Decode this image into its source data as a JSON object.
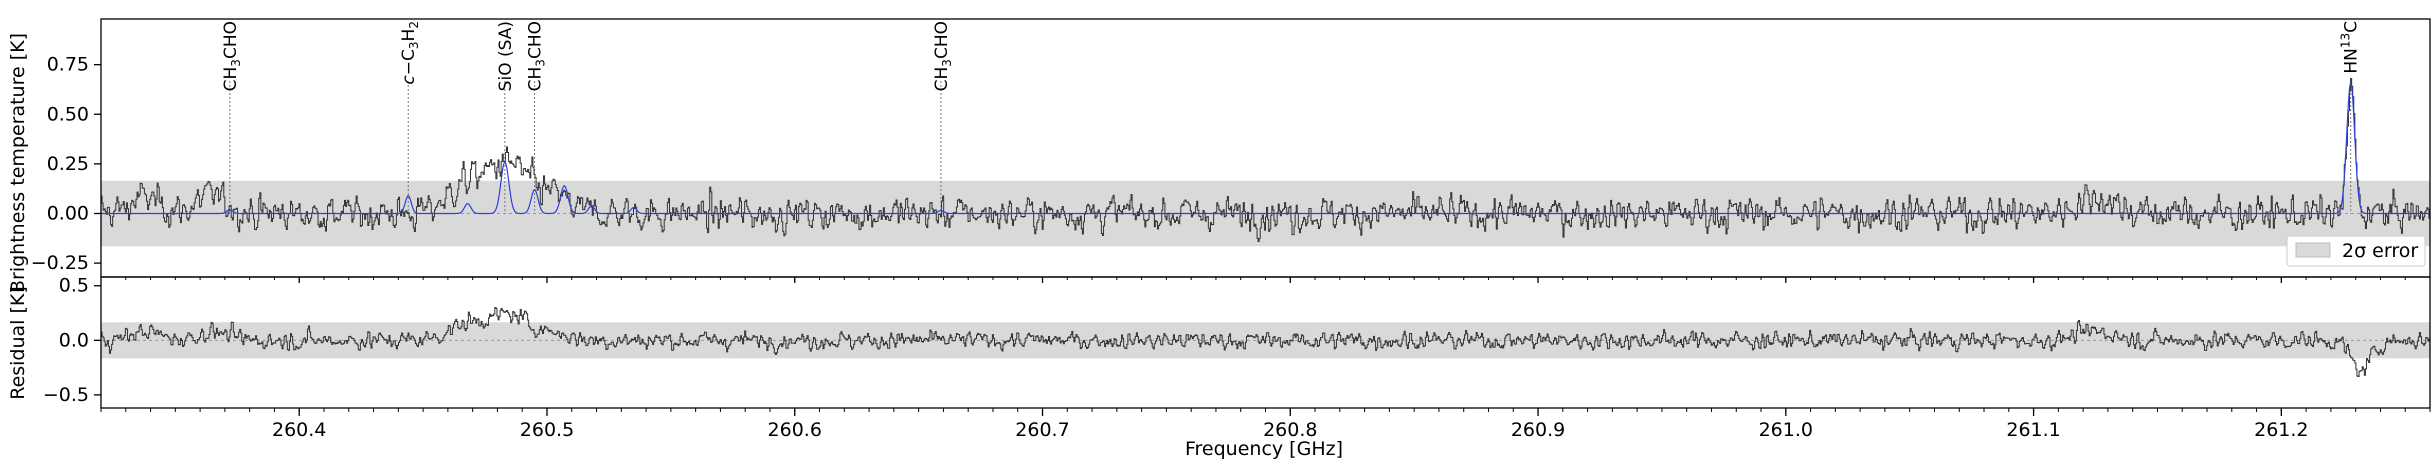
{
  "chart_data": [
    {
      "type": "line",
      "panel": "top",
      "ylabel": "Brightness temperature [K]",
      "xlim": [
        260.32,
        261.26
      ],
      "ylim": [
        -0.32,
        0.98
      ],
      "yticks": [
        -0.25,
        0.0,
        0.25,
        0.5,
        0.75
      ],
      "ytick_labels": [
        "−0.25",
        "0.00",
        "0.25",
        "0.50",
        "0.75"
      ],
      "error_band": 0.165,
      "legend": {
        "position": "lower-right",
        "label": "2σ error"
      },
      "line_markers": [
        {
          "freq": 260.372,
          "label": "CH3CHO",
          "sub": "3",
          "type": "formula"
        },
        {
          "freq": 260.444,
          "label": "c-C3H2",
          "type": "cc3h2"
        },
        {
          "freq": 260.483,
          "label": "SiO (SA)",
          "type": "plain"
        },
        {
          "freq": 260.495,
          "label": "CH3CHO",
          "sub": "3",
          "type": "formula"
        },
        {
          "freq": 260.659,
          "label": "CH3CHO",
          "sub": "3",
          "type": "formula"
        },
        {
          "freq": 261.228,
          "label": "HN13C",
          "type": "hn13c"
        }
      ],
      "model_components": [
        {
          "center": 260.372,
          "amp": 0.02,
          "width": 0.0012
        },
        {
          "center": 260.444,
          "amp": 0.09,
          "width": 0.0012
        },
        {
          "center": 260.483,
          "amp": 0.26,
          "width": 0.0016
        },
        {
          "center": 260.495,
          "amp": 0.12,
          "width": 0.0014
        },
        {
          "center": 260.507,
          "amp": 0.14,
          "width": 0.0015
        },
        {
          "center": 260.468,
          "amp": 0.05,
          "width": 0.0013
        },
        {
          "center": 260.518,
          "amp": 0.04,
          "width": 0.0012
        },
        {
          "center": 260.535,
          "amp": 0.03,
          "width": 0.0012
        },
        {
          "center": 260.659,
          "amp": 0.015,
          "width": 0.0012
        },
        {
          "center": 261.228,
          "amp": 0.66,
          "width": 0.0016
        }
      ],
      "observed_features": [
        {
          "center": 260.338,
          "amp": 0.08,
          "width": 0.006
        },
        {
          "center": 260.365,
          "amp": 0.09,
          "width": 0.006
        },
        {
          "center": 260.468,
          "amp": 0.15,
          "width": 0.008
        },
        {
          "center": 260.485,
          "amp": 0.24,
          "width": 0.008
        },
        {
          "center": 260.503,
          "amp": 0.08,
          "width": 0.006
        },
        {
          "center": 261.125,
          "amp": 0.08,
          "width": 0.008
        },
        {
          "center": 261.228,
          "amp": 0.62,
          "width": 0.0016
        }
      ],
      "noise_rms": 0.07,
      "series": [
        {
          "role": "observed",
          "color": "#333333"
        },
        {
          "role": "model",
          "color": "#2e3fd6"
        }
      ]
    },
    {
      "type": "line",
      "panel": "bottom",
      "xlabel": "Frequency [GHz]",
      "ylabel": "Residual [K]",
      "xlim": [
        260.32,
        261.26
      ],
      "ylim": [
        -0.62,
        0.58
      ],
      "yticks": [
        -0.5,
        0.0,
        0.5
      ],
      "ytick_labels": [
        "−0.5",
        "0.0",
        "0.5"
      ],
      "xticks": [
        260.4,
        260.5,
        260.6,
        260.7,
        260.8,
        260.9,
        261.0,
        261.1,
        261.2
      ],
      "xtick_labels": [
        "260.4",
        "260.5",
        "260.6",
        "260.7",
        "260.8",
        "260.9",
        "261.0",
        "261.1",
        "261.2"
      ],
      "error_band": 0.165,
      "residual_features": [
        {
          "center": 260.338,
          "amp": 0.08,
          "width": 0.006
        },
        {
          "center": 260.365,
          "amp": 0.08,
          "width": 0.006
        },
        {
          "center": 260.468,
          "amp": 0.14,
          "width": 0.008
        },
        {
          "center": 260.485,
          "amp": 0.22,
          "width": 0.008
        },
        {
          "center": 260.503,
          "amp": 0.06,
          "width": 0.006
        },
        {
          "center": 261.125,
          "amp": 0.08,
          "width": 0.008
        },
        {
          "center": 261.232,
          "amp": -0.28,
          "width": 0.004
        }
      ],
      "series": [
        {
          "role": "residual",
          "color": "#333333"
        }
      ]
    }
  ]
}
